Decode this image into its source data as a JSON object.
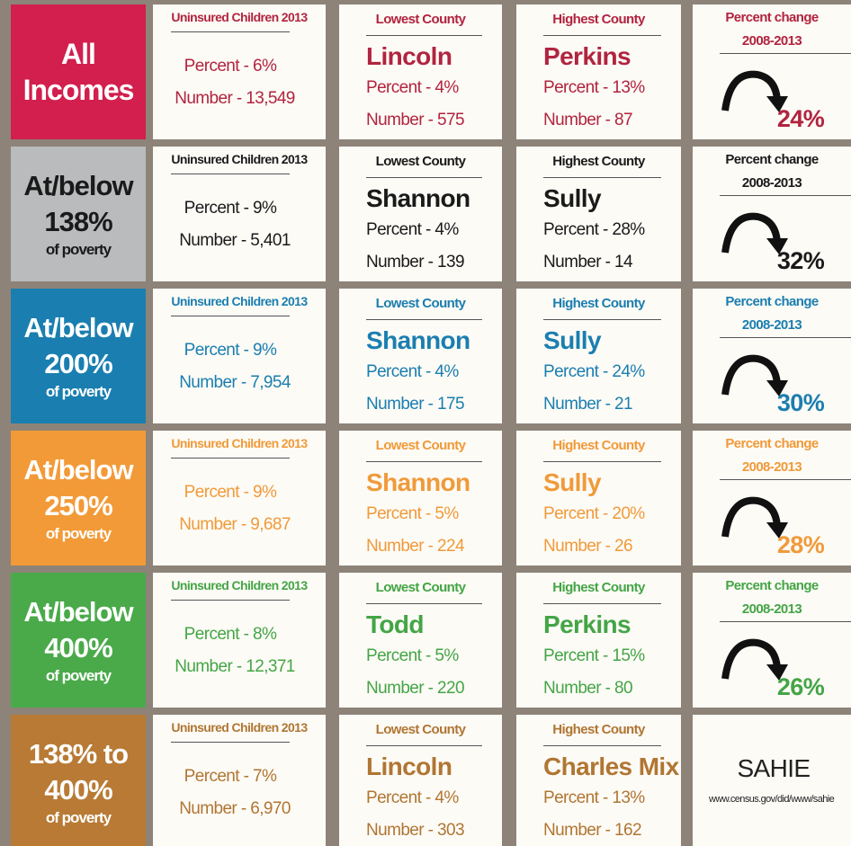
{
  "rows": [
    {
      "label": [
        "All",
        "Incomes"
      ],
      "color": "#d21f4d",
      "text_color": "#b1243f",
      "uninsured": {
        "heading": "Uninsured Children 2013",
        "percent": "Percent - 6%",
        "number": "Number - 13,549"
      },
      "lowest": {
        "heading": "Lowest County",
        "county": "Lincoln",
        "percent": "Percent - 4%",
        "number": "Number - 575"
      },
      "highest": {
        "heading": "Highest County",
        "county": "Perkins",
        "percent": "Percent - 13%",
        "number": "Number - 87"
      },
      "change": {
        "heading": [
          "Percent change",
          "2008-2013"
        ],
        "value": "24%"
      }
    },
    {
      "label": [
        "At/below",
        "138%",
        "of poverty"
      ],
      "color": "#b9bbbd",
      "text_color": "#1a1a1a",
      "uninsured": {
        "heading": "Uninsured Children 2013",
        "percent": "Percent - 9%",
        "number": "Number - 5,401"
      },
      "lowest": {
        "heading": "Lowest County",
        "county": "Shannon",
        "percent": "Percent - 4%",
        "number": "Number - 139"
      },
      "highest": {
        "heading": "Highest County",
        "county": "Sully",
        "percent": "Percent - 28%",
        "number": "Number - 14"
      },
      "change": {
        "heading": [
          "Percent change",
          "2008-2013"
        ],
        "value": "32%"
      }
    },
    {
      "label": [
        "At/below",
        "200%",
        "of poverty"
      ],
      "color": "#1a7fb0",
      "text_color": "#1b7eb0",
      "uninsured": {
        "heading": "Uninsured Children 2013",
        "percent": "Percent - 9%",
        "number": "Number - 7,954"
      },
      "lowest": {
        "heading": "Lowest County",
        "county": "Shannon",
        "percent": "Percent - 4%",
        "number": "Number - 175"
      },
      "highest": {
        "heading": "Highest County",
        "county": "Sully",
        "percent": "Percent - 24%",
        "number": "Number - 21"
      },
      "change": {
        "heading": [
          "Percent change",
          "2008-2013"
        ],
        "value": "30%"
      }
    },
    {
      "label": [
        "At/below",
        "250%",
        "of poverty"
      ],
      "color": "#f29a38",
      "text_color": "#f09a3a",
      "uninsured": {
        "heading": "Uninsured Children 2013",
        "percent": "Percent - 9%",
        "number": "Number - 9,687"
      },
      "lowest": {
        "heading": "Lowest County",
        "county": "Shannon",
        "percent": "Percent - 5%",
        "number": "Number - 224"
      },
      "highest": {
        "heading": "Highest County",
        "county": "Sully",
        "percent": "Percent - 20%",
        "number": "Number - 26"
      },
      "change": {
        "heading": [
          "Percent change",
          "2008-2013"
        ],
        "value": "28%"
      }
    },
    {
      "label": [
        "At/below",
        "400%",
        "of poverty"
      ],
      "color": "#4aaa4a",
      "text_color": "#44a546",
      "uninsured": {
        "heading": "Uninsured Children 2013",
        "percent": "Percent - 8%",
        "number": "Number - 12,371"
      },
      "lowest": {
        "heading": "Lowest County",
        "county": "Todd",
        "percent": "Percent - 5%",
        "number": "Number - 220"
      },
      "highest": {
        "heading": "Highest County",
        "county": "Perkins",
        "percent": "Percent - 15%",
        "number": "Number - 80"
      },
      "change": {
        "heading": [
          "Percent change",
          "2008-2013"
        ],
        "value": "26%"
      }
    },
    {
      "label": [
        "138% to",
        "400%",
        "of poverty"
      ],
      "color": "#b87a35",
      "text_color": "#b07633",
      "uninsured": {
        "heading": "Uninsured Children 2013",
        "percent": "Percent - 7%",
        "number": "Number - 6,970"
      },
      "lowest": {
        "heading": "Lowest County",
        "county": "Lincoln",
        "percent": "Percent - 4%",
        "number": "Number - 303"
      },
      "highest": {
        "heading": "Highest County",
        "county": "Charles Mix",
        "percent": "Percent - 13%",
        "number": "Number - 162"
      },
      "source": {
        "title": "SAHIE",
        "url": "www.census.gov/did/www/sahie"
      }
    }
  ]
}
